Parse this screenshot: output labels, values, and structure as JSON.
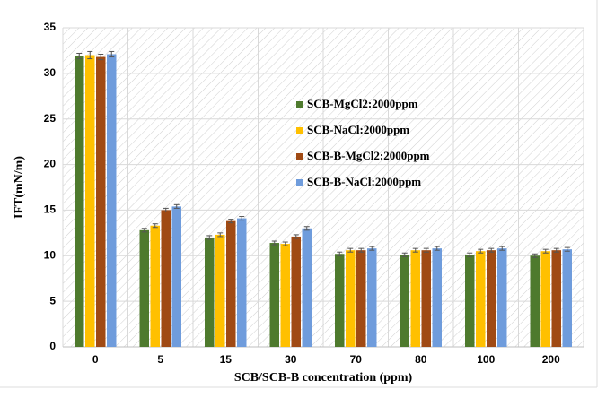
{
  "chart_data": {
    "type": "bar",
    "x_label": "SCB/SCB-B concentration (ppm)",
    "y_label": "IFT(mN/m)",
    "categories": [
      "0",
      "5",
      "15",
      "30",
      "70",
      "80",
      "100",
      "200"
    ],
    "series": [
      {
        "name": "SCB-MgCl2:2000ppm",
        "color": "#4e7a2d",
        "values": [
          31.9,
          12.8,
          12.0,
          11.4,
          10.2,
          10.1,
          10.1,
          10.0
        ],
        "errors": [
          0.3,
          0.2,
          0.2,
          0.2,
          0.2,
          0.2,
          0.2,
          0.2
        ]
      },
      {
        "name": "SCB-NaCl:2000ppm",
        "color": "#ffc000",
        "values": [
          32.0,
          13.3,
          12.3,
          11.3,
          10.6,
          10.6,
          10.5,
          10.5
        ],
        "errors": [
          0.4,
          0.2,
          0.2,
          0.2,
          0.2,
          0.2,
          0.2,
          0.2
        ]
      },
      {
        "name": "SCB-B-MgCl2:2000ppm",
        "color": "#a04a14",
        "values": [
          31.8,
          15.0,
          13.8,
          12.1,
          10.6,
          10.6,
          10.6,
          10.6
        ],
        "errors": [
          0.3,
          0.2,
          0.2,
          0.2,
          0.2,
          0.2,
          0.2,
          0.2
        ]
      },
      {
        "name": "SCB-B-NaCl:2000ppm",
        "color": "#6f9cdc",
        "values": [
          32.1,
          15.4,
          14.1,
          13.0,
          10.8,
          10.8,
          10.8,
          10.7
        ],
        "errors": [
          0.3,
          0.2,
          0.2,
          0.2,
          0.2,
          0.2,
          0.2,
          0.2
        ]
      }
    ],
    "ylim": [
      0,
      35
    ],
    "yticks": [
      0,
      5,
      10,
      15,
      20,
      25,
      30,
      35
    ],
    "grid": true,
    "legend": "center"
  }
}
